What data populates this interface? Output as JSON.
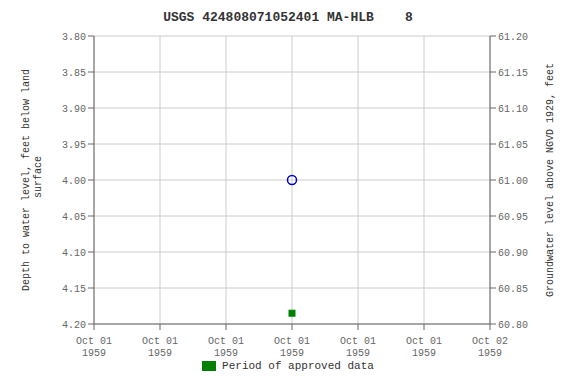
{
  "chart_data": {
    "type": "scatter",
    "title": "USGS 424808071052401 MA-HLB    8",
    "ylabel": "Depth to water level, feet below land\n surface",
    "y2label": "Groundwater level above NGVD 1929, feet",
    "categories": [
      "Oct 01\n1959",
      "Oct 01\n1959",
      "Oct 01\n1959",
      "Oct 01\n1959",
      "Oct 01\n1959",
      "Oct 01\n1959",
      "Oct 02\n1959"
    ],
    "series": [
      {
        "values": [
          null,
          null,
          null,
          4.0,
          null,
          null,
          null
        ],
        "color": "#0000cc",
        "marker": "open_circle"
      },
      {
        "name": "Period of approved data",
        "values": [
          null,
          null,
          null,
          4.185,
          null,
          null,
          null
        ],
        "color": "#008000",
        "marker": "square"
      }
    ],
    "ylim": [
      4.2,
      3.8
    ],
    "yticks": [
      {
        "value": 3.8,
        "label": "3.80"
      },
      {
        "value": 3.85,
        "label": "3.85"
      },
      {
        "value": 3.9,
        "label": "3.90"
      },
      {
        "value": 3.95,
        "label": "3.95"
      },
      {
        "value": 4.0,
        "label": "4.00"
      },
      {
        "value": 4.05,
        "label": "4.05"
      },
      {
        "value": 4.1,
        "label": "4.10"
      },
      {
        "value": 4.15,
        "label": "4.15"
      },
      {
        "value": 4.2,
        "label": "4.20"
      }
    ],
    "y2lim": [
      60.8,
      61.2
    ],
    "y2ticks": [
      {
        "value": 61.2,
        "label": "61.20"
      },
      {
        "value": 61.15,
        "label": "61.15"
      },
      {
        "value": 61.1,
        "label": "61.10"
      },
      {
        "value": 61.05,
        "label": "61.05"
      },
      {
        "value": 61.0,
        "label": "61.00"
      },
      {
        "value": 60.95,
        "label": "60.95"
      },
      {
        "value": 60.9,
        "label": "60.90"
      },
      {
        "value": 60.85,
        "label": "60.85"
      },
      {
        "value": 60.8,
        "label": "60.80"
      }
    ],
    "grid": true,
    "legend": "bottom"
  }
}
